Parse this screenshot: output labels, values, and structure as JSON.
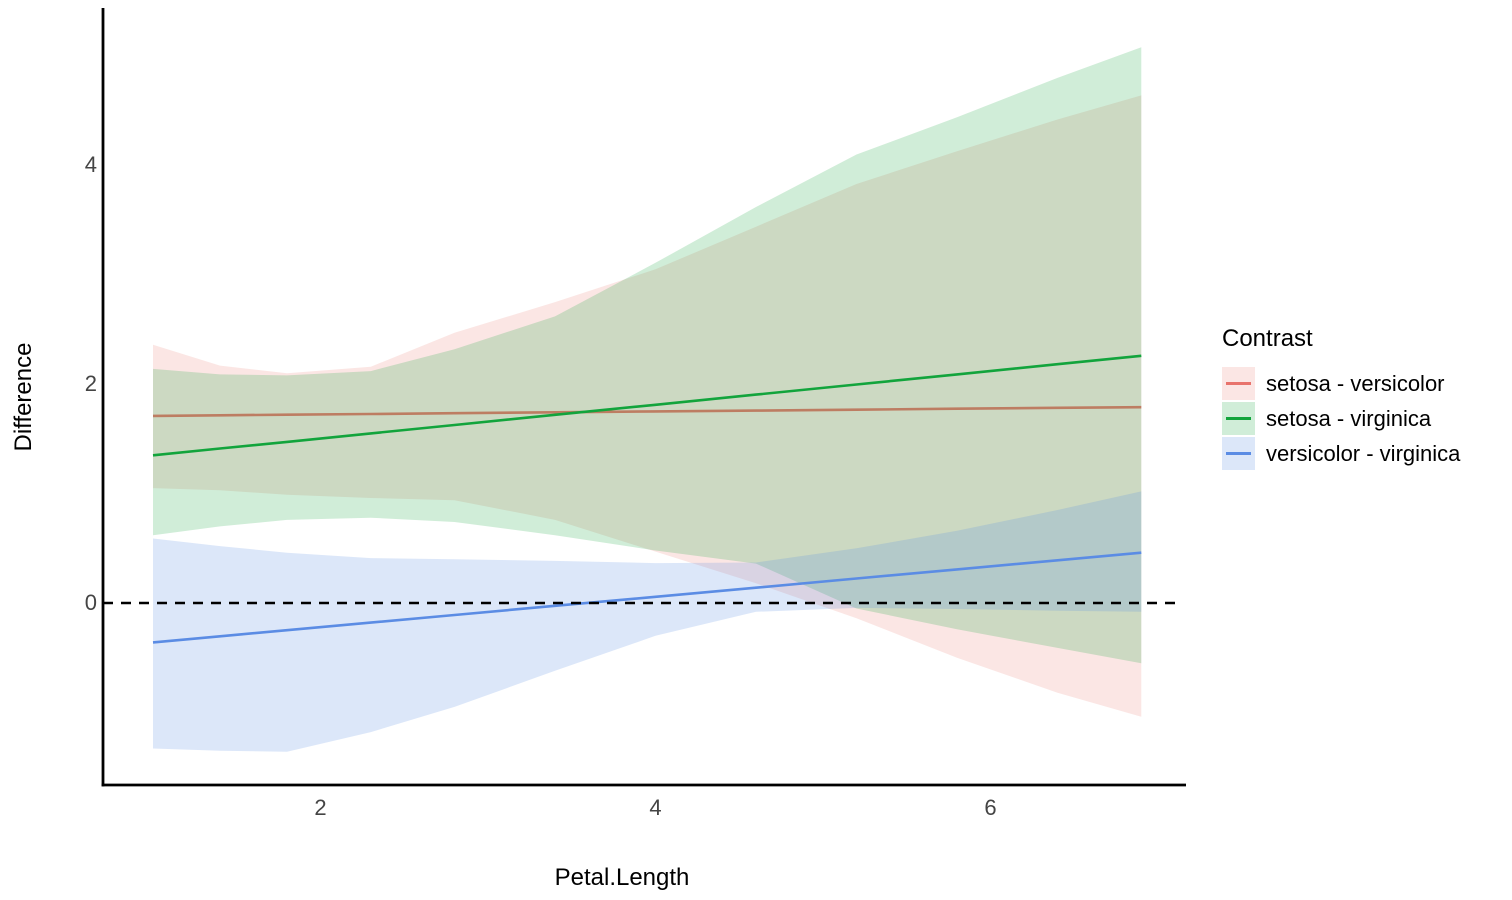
{
  "figure": {
    "background": "#ffffff"
  },
  "axes": {
    "x_title": "Petal.Length",
    "y_title": "Difference"
  },
  "legend": {
    "title": "Contrast",
    "items": [
      "setosa - versicolor",
      "setosa - virginica",
      "versicolor - virginica"
    ]
  },
  "chart_data": {
    "type": "line",
    "subtype": "lines-with-confidence-ribbons",
    "title": "",
    "xlabel": "Petal.Length",
    "ylabel": "Difference",
    "legend_title": "Contrast",
    "legend_position": "right",
    "grid": false,
    "xlim": [
      0.7,
      7.17
    ],
    "ylim": [
      -1.66,
      5.44
    ],
    "x_ticks": [
      2,
      4,
      6
    ],
    "y_ticks": [
      0,
      2,
      4
    ],
    "reference_line": {
      "y": 0,
      "style": "dashed",
      "color": "#000000"
    },
    "x": [
      1,
      1.4,
      1.8,
      2.3,
      2.8,
      3.4,
      4,
      4.6,
      5.2,
      5.8,
      6.4,
      6.9
    ],
    "series": [
      {
        "name": "setosa - versicolor",
        "color": "#E8736C",
        "fill": "rgba(232,115,108,0.18)",
        "estimate": [
          1.71,
          1.716,
          1.721,
          1.728,
          1.735,
          1.743,
          1.751,
          1.759,
          1.767,
          1.776,
          1.784,
          1.79
        ],
        "upper": [
          2.36,
          2.17,
          2.1,
          2.16,
          2.47,
          2.75,
          3.05,
          3.44,
          3.83,
          4.13,
          4.42,
          4.64
        ],
        "lower": [
          1.05,
          1.03,
          0.99,
          0.96,
          0.94,
          0.76,
          0.47,
          0.18,
          -0.14,
          -0.5,
          -0.82,
          -1.04
        ]
      },
      {
        "name": "setosa - virginica",
        "color": "#12A43C",
        "fill": "rgba(18,164,60,0.20)",
        "estimate": [
          1.35,
          1.412,
          1.473,
          1.55,
          1.627,
          1.72,
          1.812,
          1.905,
          1.997,
          2.09,
          2.183,
          2.26
        ],
        "upper": [
          2.14,
          2.09,
          2.08,
          2.12,
          2.32,
          2.62,
          3.11,
          3.62,
          4.1,
          4.44,
          4.8,
          5.08
        ],
        "lower": [
          0.62,
          0.7,
          0.76,
          0.78,
          0.74,
          0.62,
          0.48,
          0.36,
          -0.05,
          -0.24,
          -0.41,
          -0.55
        ]
      },
      {
        "name": "versicolor - virginica",
        "color": "#5B8CE4",
        "fill": "rgba(91,140,228,0.21)",
        "estimate": [
          -0.36,
          -0.304,
          -0.249,
          -0.179,
          -0.11,
          -0.026,
          0.057,
          0.14,
          0.224,
          0.307,
          0.39,
          0.46
        ],
        "upper": [
          0.59,
          0.52,
          0.46,
          0.41,
          0.4,
          0.385,
          0.365,
          0.37,
          0.5,
          0.66,
          0.85,
          1.02
        ],
        "lower": [
          -1.33,
          -1.35,
          -1.36,
          -1.18,
          -0.95,
          -0.62,
          -0.3,
          -0.08,
          -0.045,
          -0.055,
          -0.07,
          -0.08
        ]
      }
    ]
  }
}
